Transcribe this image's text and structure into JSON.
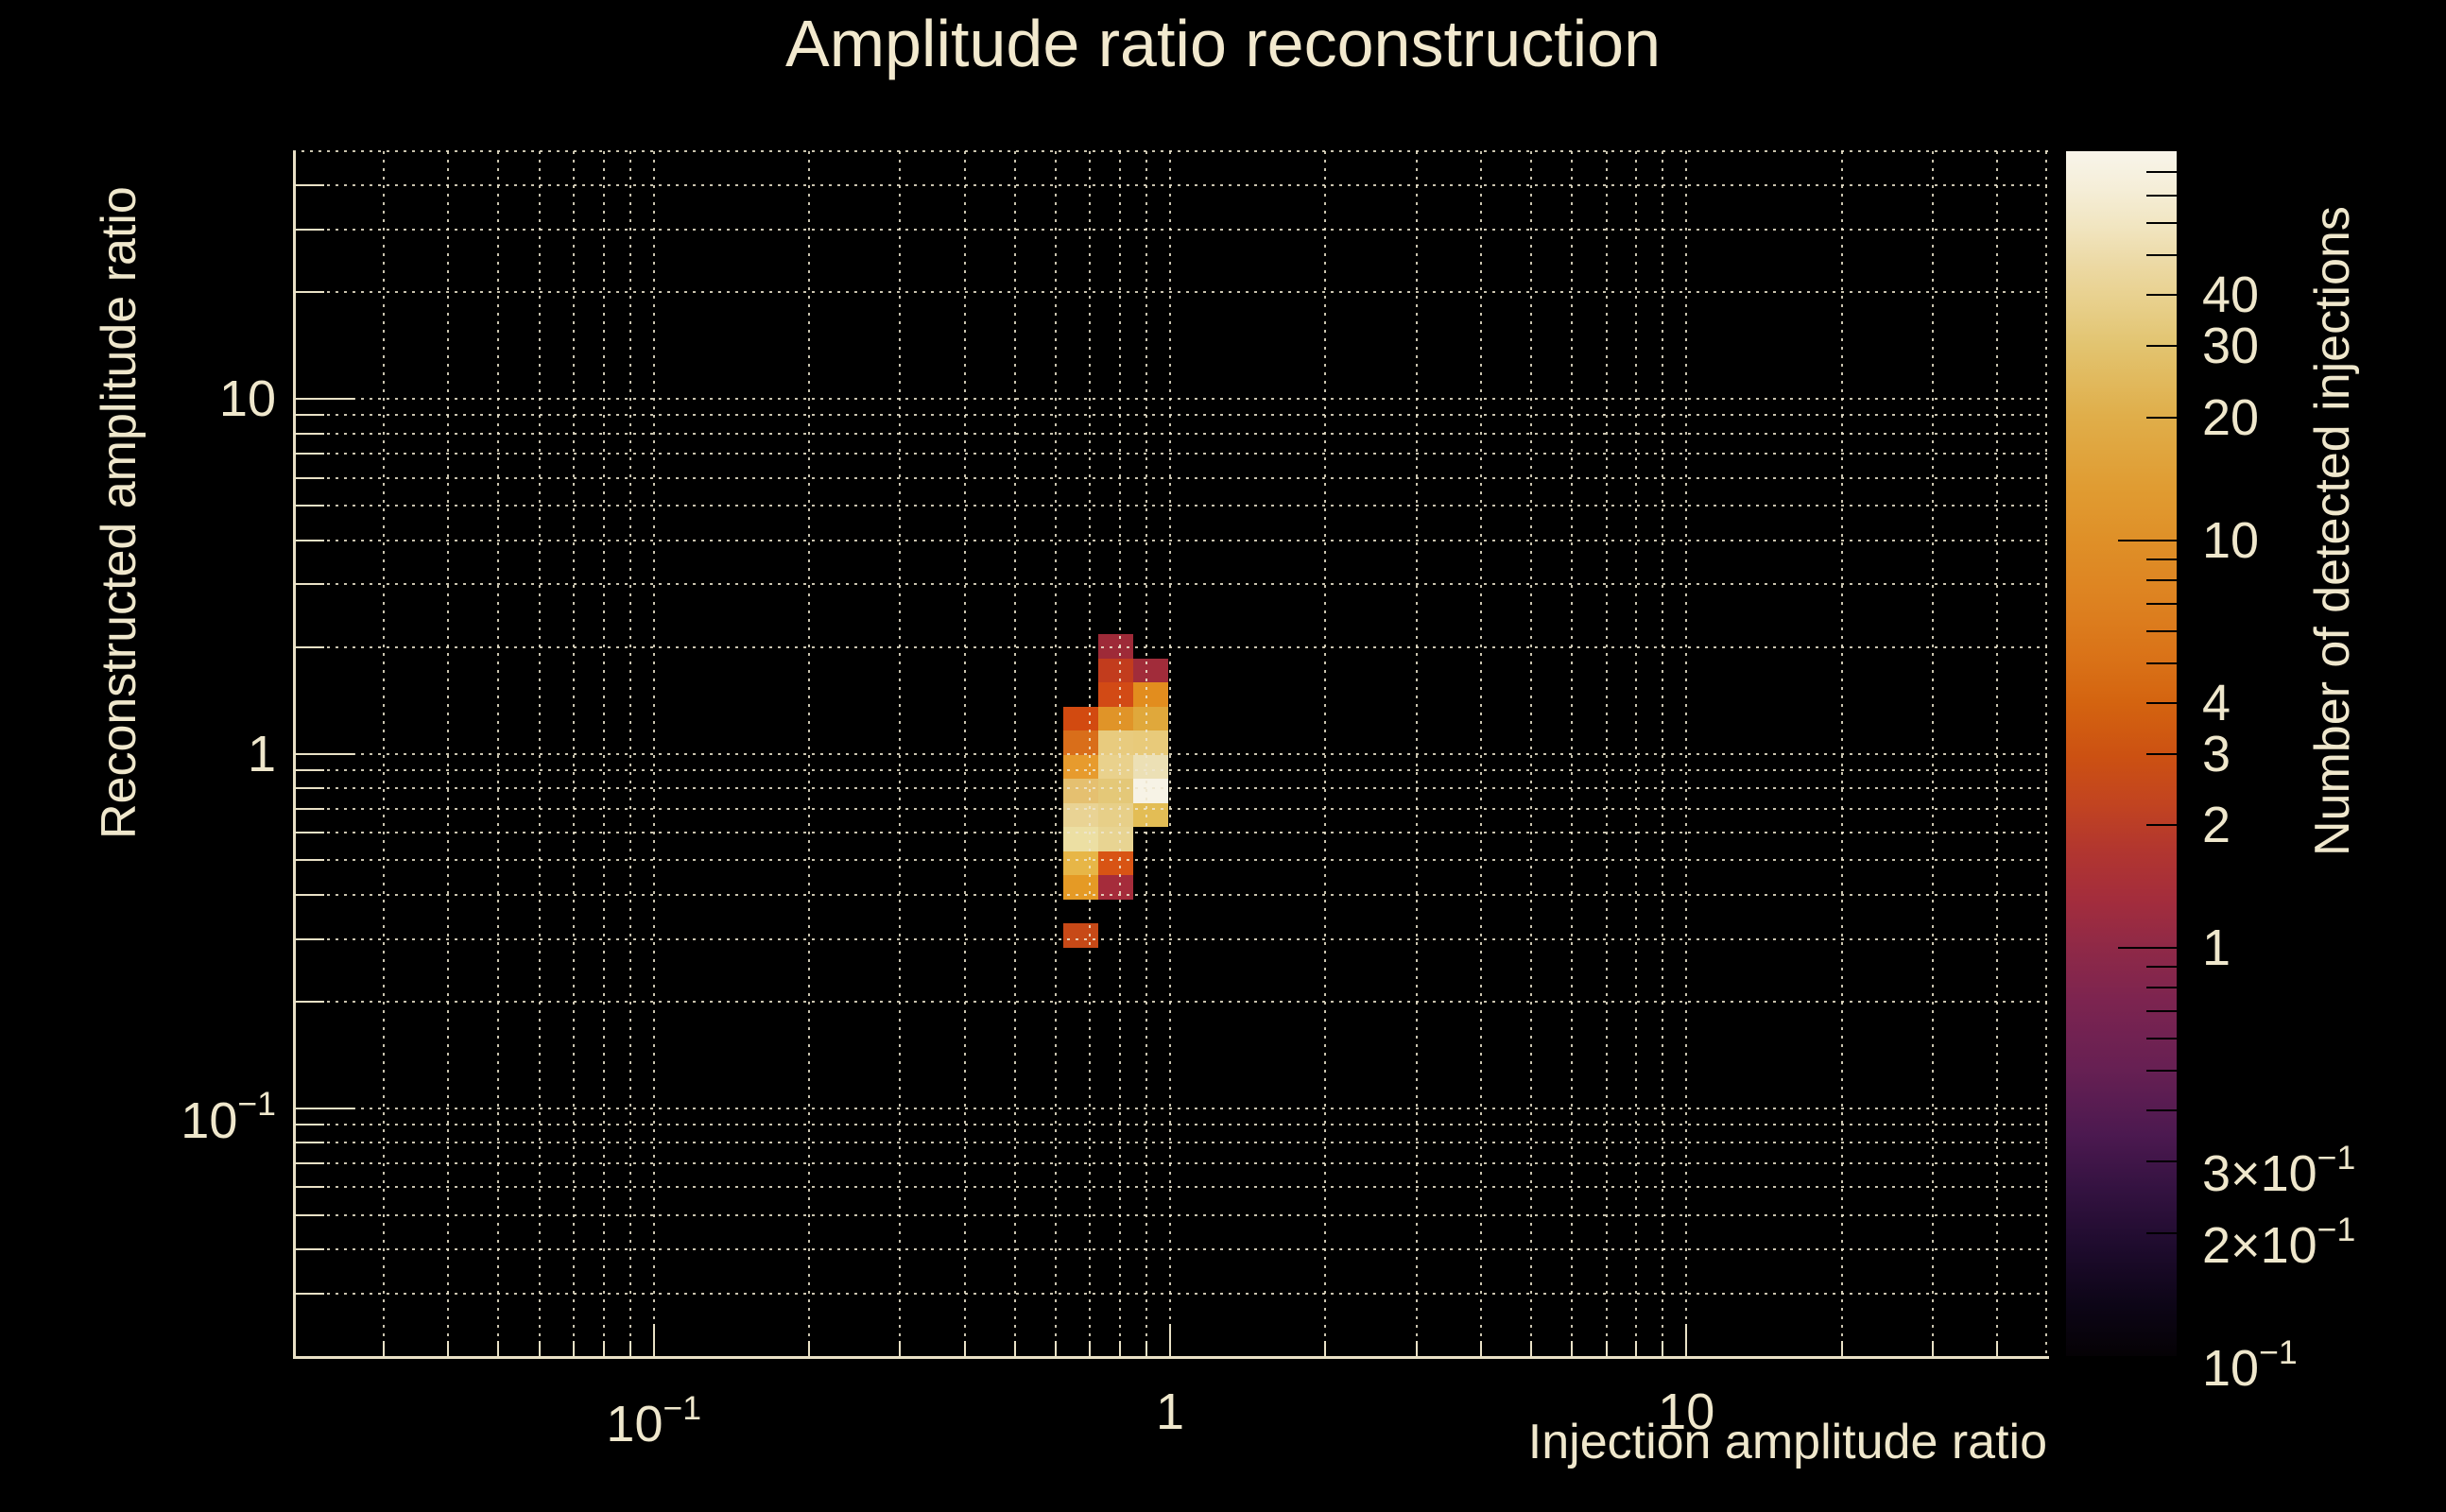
{
  "title": "Amplitude ratio reconstruction",
  "colors": {
    "background": "#000000",
    "text": "#efe7cc",
    "frame": "#e9e1c6",
    "grid": "#eee6ce",
    "colorbar_tick": "#000000",
    "heatmap_max": "#f7f3e6",
    "heatmap_min": "#9e2a38"
  },
  "chart_data": {
    "type": "heatmap",
    "title": "Amplitude ratio reconstruction",
    "xlabel": "Injection amplitude ratio",
    "ylabel": "Reconstructed amplitude ratio",
    "zlabel": "Number of detected injections",
    "xscale": "log",
    "yscale": "log",
    "zscale": "log",
    "xlim": [
      0.02,
      50
    ],
    "ylim": [
      0.02,
      50
    ],
    "zlim": [
      0.1,
      90
    ],
    "grid": "dotted beige gridlines at every log subdivision, both axes",
    "legend_position": "vertical colorbar at right",
    "x_tick_labels": [
      {
        "v": 0.1,
        "t": "10",
        "e": "−1"
      },
      {
        "v": 1,
        "t": "1"
      },
      {
        "v": 10,
        "t": "10"
      }
    ],
    "y_tick_labels": [
      {
        "v": 10,
        "t": "10"
      },
      {
        "v": 1,
        "t": "1"
      },
      {
        "v": 0.1,
        "t": "10",
        "e": "−1"
      }
    ],
    "z_tick_labels": [
      {
        "v": 40,
        "t": "40"
      },
      {
        "v": 30,
        "t": "30"
      },
      {
        "v": 20,
        "t": "20"
      },
      {
        "v": 10,
        "t": "10"
      },
      {
        "v": 4,
        "t": "4"
      },
      {
        "v": 3,
        "t": "3"
      },
      {
        "v": 2,
        "t": "2"
      },
      {
        "v": 1,
        "t": "1"
      },
      {
        "v": 0.3,
        "t": "3×10",
        "e": "−1"
      },
      {
        "v": 0.2,
        "t": "2×10",
        "e": "−1"
      },
      {
        "v": 0.1,
        "t": "10",
        "e": "−1"
      }
    ],
    "palette_stops": [
      {
        "p": 0.0,
        "c": "#f8f5ea"
      },
      {
        "p": 3.1,
        "c": "#f5eed8"
      },
      {
        "p": 6.3,
        "c": "#f1e5c0"
      },
      {
        "p": 9.4,
        "c": "#ecd9a4"
      },
      {
        "p": 12.5,
        "c": "#e8d08c"
      },
      {
        "p": 16.1,
        "c": "#e2c470"
      },
      {
        "p": 22.0,
        "c": "#e0ae4a"
      },
      {
        "p": 28.2,
        "c": "#e09b31"
      },
      {
        "p": 32.2,
        "c": "#df9028"
      },
      {
        "p": 37.6,
        "c": "#dd8120"
      },
      {
        "p": 42.4,
        "c": "#d97117"
      },
      {
        "p": 45.7,
        "c": "#d46410"
      },
      {
        "p": 50.2,
        "c": "#cc5112"
      },
      {
        "p": 54.1,
        "c": "#c24420"
      },
      {
        "p": 58.0,
        "c": "#b2362f"
      },
      {
        "p": 62.0,
        "c": "#a42d3c"
      },
      {
        "p": 66.1,
        "c": "#8f2947"
      },
      {
        "p": 70.6,
        "c": "#7c2450"
      },
      {
        "p": 76.1,
        "c": "#672053"
      },
      {
        "p": 81.6,
        "c": "#4c1950"
      },
      {
        "p": 86.3,
        "c": "#331240"
      },
      {
        "p": 91.0,
        "c": "#1e0b2d"
      },
      {
        "p": 95.7,
        "c": "#0d0517"
      },
      {
        "p": 100.0,
        "c": "#050205"
      }
    ],
    "cells": [
      {
        "x0": 0.726,
        "x1": 0.849,
        "y0": 1.858,
        "y1": 2.173,
        "n": 1,
        "c": "#9e2a38"
      },
      {
        "x0": 0.726,
        "x1": 0.849,
        "y0": 1.589,
        "y1": 1.858,
        "n": 2,
        "c": "#c23c1d"
      },
      {
        "x0": 0.849,
        "x1": 0.993,
        "y0": 1.589,
        "y1": 1.858,
        "n": 1,
        "c": "#a12c3a"
      },
      {
        "x0": 0.726,
        "x1": 0.849,
        "y0": 1.359,
        "y1": 1.589,
        "n": 3,
        "c": "#d24a15"
      },
      {
        "x0": 0.849,
        "x1": 0.993,
        "y0": 1.359,
        "y1": 1.589,
        "n": 9,
        "c": "#e28d1e"
      },
      {
        "x0": 0.621,
        "x1": 0.726,
        "y0": 1.162,
        "y1": 1.359,
        "n": 3,
        "c": "#d24a10"
      },
      {
        "x0": 0.726,
        "x1": 0.849,
        "y0": 1.162,
        "y1": 1.359,
        "n": 10,
        "c": "#e09428"
      },
      {
        "x0": 0.849,
        "x1": 0.993,
        "y0": 1.162,
        "y1": 1.359,
        "n": 18,
        "c": "#e0a83b"
      },
      {
        "x0": 0.621,
        "x1": 0.726,
        "y0": 0.993,
        "y1": 1.162,
        "n": 5,
        "c": "#d96e1a"
      },
      {
        "x0": 0.726,
        "x1": 0.849,
        "y0": 0.993,
        "y1": 1.162,
        "n": 30,
        "c": "#e8cb7e"
      },
      {
        "x0": 0.849,
        "x1": 0.993,
        "y0": 0.993,
        "y1": 1.162,
        "n": 29,
        "c": "#e8ca7a"
      },
      {
        "x0": 0.621,
        "x1": 0.726,
        "y0": 0.849,
        "y1": 0.993,
        "n": 12,
        "c": "#e79b2d"
      },
      {
        "x0": 0.726,
        "x1": 0.849,
        "y0": 0.849,
        "y1": 0.993,
        "n": 40,
        "c": "#e9d18c"
      },
      {
        "x0": 0.849,
        "x1": 0.993,
        "y0": 0.849,
        "y1": 0.993,
        "n": 60,
        "c": "#ece0b5"
      },
      {
        "x0": 0.621,
        "x1": 0.726,
        "y0": 0.726,
        "y1": 0.849,
        "n": 29,
        "c": "#e5c070"
      },
      {
        "x0": 0.726,
        "x1": 0.849,
        "y0": 0.726,
        "y1": 0.849,
        "n": 29,
        "c": "#e4c878"
      },
      {
        "x0": 0.849,
        "x1": 0.993,
        "y0": 0.726,
        "y1": 0.849,
        "n": 85,
        "c": "#f7f3e6"
      },
      {
        "x0": 0.621,
        "x1": 0.726,
        "y0": 0.621,
        "y1": 0.726,
        "n": 42,
        "c": "#e9d394"
      },
      {
        "x0": 0.726,
        "x1": 0.849,
        "y0": 0.621,
        "y1": 0.726,
        "n": 38,
        "c": "#e7cf88"
      },
      {
        "x0": 0.849,
        "x1": 0.993,
        "y0": 0.621,
        "y1": 0.726,
        "n": 24,
        "c": "#e3bd55"
      },
      {
        "x0": 0.621,
        "x1": 0.726,
        "y0": 0.531,
        "y1": 0.621,
        "n": 50,
        "c": "#ecdfa3"
      },
      {
        "x0": 0.726,
        "x1": 0.849,
        "y0": 0.531,
        "y1": 0.621,
        "n": 40,
        "c": "#e8d492"
      },
      {
        "x0": 0.621,
        "x1": 0.726,
        "y0": 0.454,
        "y1": 0.531,
        "n": 22,
        "c": "#e7b647"
      },
      {
        "x0": 0.726,
        "x1": 0.849,
        "y0": 0.454,
        "y1": 0.531,
        "n": 3,
        "c": "#d85414"
      },
      {
        "x0": 0.621,
        "x1": 0.726,
        "y0": 0.388,
        "y1": 0.454,
        "n": 11,
        "c": "#e59a25"
      },
      {
        "x0": 0.726,
        "x1": 0.849,
        "y0": 0.388,
        "y1": 0.454,
        "n": 1,
        "c": "#a52c3b"
      },
      {
        "x0": 0.621,
        "x1": 0.726,
        "y0": 0.284,
        "y1": 0.332,
        "n": 2,
        "c": "#c74917"
      }
    ]
  }
}
